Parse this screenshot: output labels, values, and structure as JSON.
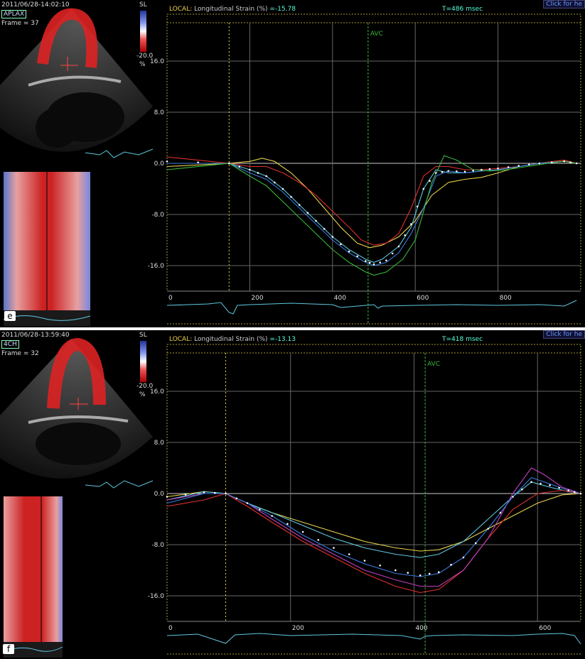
{
  "panels": [
    {
      "id": "e",
      "letter": "e",
      "timestamp": "2011/06/28-14:02:10",
      "view": "APLAX",
      "frame": "Frame = 37",
      "scale": {
        "unit": "SL",
        "max": "20.0",
        "min": "-20.0",
        "pct": "%"
      },
      "header": {
        "local": "LOCAL:",
        "metric": "Longitudinal Strain (%)",
        "value": "=-15.78",
        "time": "T=486 msec",
        "click": "Click for he"
      },
      "avc_label": "AVC"
    },
    {
      "id": "f",
      "letter": "f",
      "timestamp": "2011/06/28-13:59:40",
      "view": "4CH",
      "frame": "Frame = 32",
      "scale": {
        "unit": "SL",
        "max": "20.0",
        "min": "-20.0",
        "pct": "%"
      },
      "header": {
        "local": "LOCAL:",
        "metric": "Longitudinal Strain (%)",
        "value": "=-13.13",
        "time": "T=418 msec",
        "click": "Click for he"
      },
      "avc_label": "AVC"
    }
  ],
  "chart_data": [
    {
      "type": "line",
      "title": "Longitudinal Strain (%)",
      "xlim": [
        0,
        1000
      ],
      "ylim": [
        -20,
        22
      ],
      "yticks": [
        "16.0",
        "8.0",
        "0.0",
        "-8.0",
        "-16.0"
      ],
      "xticks": [
        "0",
        "200",
        "400",
        "600",
        "800"
      ],
      "grid": true,
      "markers": {
        "start": 150,
        "avc": 486
      },
      "series": [
        {
          "color": "#e8d34a",
          "x": [
            0,
            150,
            200,
            230,
            260,
            300,
            340,
            380,
            420,
            460,
            490,
            520,
            560,
            600,
            640,
            680,
            720,
            760,
            800,
            850,
            900,
            960,
            990
          ],
          "y": [
            -0.5,
            0,
            0.3,
            0.8,
            0.3,
            -1.5,
            -4,
            -7,
            -10,
            -12.5,
            -13.2,
            -12.8,
            -11.5,
            -9,
            -5,
            -3,
            -2.5,
            -2.2,
            -1.5,
            -0.5,
            0,
            0.5,
            0
          ]
        },
        {
          "color": "#e03030",
          "x": [
            0,
            150,
            200,
            240,
            280,
            320,
            360,
            400,
            440,
            470,
            500,
            530,
            560,
            590,
            620,
            650,
            680,
            720,
            760,
            800,
            850,
            900,
            960,
            990
          ],
          "y": [
            1,
            0,
            -0.5,
            -0.5,
            -1.5,
            -3,
            -5,
            -7.5,
            -10,
            -12,
            -12.8,
            -12.5,
            -11,
            -7,
            -2,
            -0.5,
            -0.5,
            -1,
            -1,
            -0.8,
            -0.5,
            0,
            0.5,
            0
          ]
        },
        {
          "color": "#5fc8e0",
          "x": [
            0,
            150,
            200,
            240,
            280,
            320,
            360,
            400,
            440,
            480,
            500,
            520,
            560,
            590,
            620,
            650,
            680,
            720,
            760,
            800,
            850,
            900,
            960,
            990
          ],
          "y": [
            0,
            0,
            -1,
            -2,
            -4,
            -6.5,
            -9,
            -11.5,
            -13.5,
            -15,
            -15.5,
            -15,
            -13,
            -10,
            -4,
            -1,
            -1.5,
            -1.5,
            -1.2,
            -1,
            -0.5,
            0,
            0.3,
            0
          ]
        },
        {
          "color": "#3a7be0",
          "x": [
            0,
            150,
            200,
            240,
            280,
            320,
            360,
            400,
            440,
            480,
            500,
            530,
            560,
            590,
            620,
            650,
            680,
            720,
            760,
            800,
            850,
            900,
            960,
            990
          ],
          "y": [
            0,
            0,
            -1.5,
            -2.5,
            -4.5,
            -7,
            -9.5,
            -12,
            -14,
            -15.5,
            -16,
            -15.5,
            -14,
            -11,
            -7,
            -2,
            -1.2,
            -1.5,
            -1.2,
            -1,
            -0.5,
            0,
            0.3,
            0
          ]
        },
        {
          "color": "#3ab83a",
          "x": [
            0,
            150,
            200,
            240,
            280,
            320,
            360,
            400,
            440,
            480,
            500,
            530,
            570,
            600,
            640,
            670,
            700,
            740,
            780,
            820,
            870,
            920,
            960,
            990
          ],
          "y": [
            -1,
            0,
            -2,
            -3.5,
            -6,
            -8.5,
            -11,
            -13.5,
            -15.5,
            -17,
            -17.5,
            -17,
            -15,
            -12,
            -3,
            1.2,
            0.5,
            -1,
            -1.2,
            -1,
            -0.5,
            0,
            0.3,
            0
          ]
        },
        {
          "color": "#ffffff",
          "dotted": true,
          "x": [
            0,
            150,
            200,
            240,
            280,
            320,
            360,
            400,
            440,
            480,
            500,
            530,
            560,
            590,
            620,
            650,
            680,
            720,
            760,
            800,
            850,
            900,
            960,
            990
          ],
          "y": [
            0.3,
            0,
            -1,
            -2,
            -4,
            -6.5,
            -9,
            -11.5,
            -13.8,
            -15.3,
            -15.8,
            -15.2,
            -13,
            -9.5,
            -4,
            -1.5,
            -1.2,
            -1.3,
            -1,
            -0.8,
            -0.4,
            0,
            0.3,
            0
          ]
        }
      ],
      "ecg": {
        "x": [
          0,
          50,
          100,
          130,
          150,
          160,
          170,
          200,
          300,
          400,
          420,
          480,
          500,
          510,
          520,
          600,
          700,
          800,
          900,
          960,
          990
        ],
        "y": [
          0.2,
          0.3,
          0.4,
          0.6,
          -0.8,
          -1,
          0.2,
          0.3,
          0.5,
          0.3,
          -0.1,
          0.2,
          0.3,
          -0.2,
          0.1,
          0.2,
          0.3,
          0.2,
          0.3,
          0.1,
          0.9
        ]
      }
    },
    {
      "type": "line",
      "title": "Longitudinal Strain (%)",
      "xlim": [
        0,
        670
      ],
      "ylim": [
        -20,
        22
      ],
      "yticks": [
        "16.0",
        "8.0",
        "0.0",
        "-8.0",
        "-16.0"
      ],
      "xticks": [
        "0",
        "200",
        "400",
        "600"
      ],
      "grid": true,
      "markers": {
        "start": 95,
        "avc": 418
      },
      "series": [
        {
          "color": "#e8d34a",
          "x": [
            0,
            60,
            95,
            130,
            170,
            220,
            270,
            320,
            370,
            410,
            440,
            480,
            520,
            560,
            600,
            640,
            670
          ],
          "y": [
            -0.5,
            0.3,
            0,
            -1.5,
            -3,
            -4.5,
            -6,
            -7.5,
            -8.5,
            -9,
            -8.8,
            -7.5,
            -5.5,
            -3.5,
            -1.5,
            -0.2,
            0
          ]
        },
        {
          "color": "#5fc8e0",
          "x": [
            0,
            60,
            95,
            130,
            170,
            220,
            270,
            320,
            370,
            410,
            440,
            480,
            520,
            560,
            590,
            620,
            650,
            670
          ],
          "y": [
            -1,
            0.3,
            0,
            -1.5,
            -3,
            -5,
            -7,
            -8.5,
            -9.5,
            -10,
            -9.5,
            -7.5,
            -4,
            -0.5,
            1.8,
            1,
            0.3,
            0
          ]
        },
        {
          "color": "#e03030",
          "x": [
            0,
            60,
            95,
            130,
            170,
            220,
            270,
            320,
            370,
            410,
            440,
            480,
            520,
            560,
            600,
            640,
            670
          ],
          "y": [
            -2,
            -1,
            0,
            -2,
            -4.5,
            -7.5,
            -10,
            -12.5,
            -14.5,
            -15.5,
            -15,
            -12,
            -7,
            -2.5,
            0,
            0.5,
            0
          ]
        },
        {
          "color": "#c040c0",
          "x": [
            0,
            60,
            95,
            130,
            170,
            220,
            270,
            320,
            370,
            410,
            440,
            480,
            520,
            560,
            590,
            610,
            640,
            670
          ],
          "y": [
            -1,
            0,
            0,
            -1.5,
            -4,
            -7,
            -9.5,
            -12,
            -13.5,
            -14.5,
            -14.5,
            -12,
            -7,
            0,
            4,
            3,
            1,
            0
          ]
        },
        {
          "color": "#3a7be0",
          "x": [
            0,
            60,
            95,
            130,
            170,
            220,
            270,
            320,
            370,
            410,
            440,
            480,
            520,
            560,
            590,
            620,
            650,
            670
          ],
          "y": [
            -1.5,
            0,
            0,
            -1.5,
            -3.5,
            -6.5,
            -9,
            -11,
            -12.5,
            -13,
            -12.5,
            -10,
            -5.5,
            -0.5,
            2.5,
            1.5,
            0.5,
            0
          ]
        },
        {
          "color": "#ffffff",
          "dotted": true,
          "x": [
            0,
            60,
            95,
            130,
            170,
            220,
            270,
            320,
            370,
            410,
            440,
            480,
            520,
            560,
            590,
            620,
            650,
            670
          ],
          "y": [
            -0.5,
            0.2,
            0,
            -1.5,
            -3.5,
            -6,
            -8.5,
            -10.5,
            -12,
            -12.8,
            -12.3,
            -10,
            -5.5,
            -0.5,
            1.8,
            1.3,
            0.5,
            0
          ]
        }
      ],
      "ecg": {
        "x": [
          0,
          50,
          95,
          110,
          150,
          200,
          300,
          380,
          410,
          418,
          430,
          480,
          560,
          600,
          640,
          660,
          670
        ],
        "y": [
          0.2,
          0.4,
          -0.9,
          0.3,
          0.5,
          0.2,
          0.4,
          0.2,
          -0.3,
          0.1,
          0.2,
          0.3,
          0.2,
          0.4,
          0.5,
          0.2,
          -1
        ]
      }
    }
  ]
}
